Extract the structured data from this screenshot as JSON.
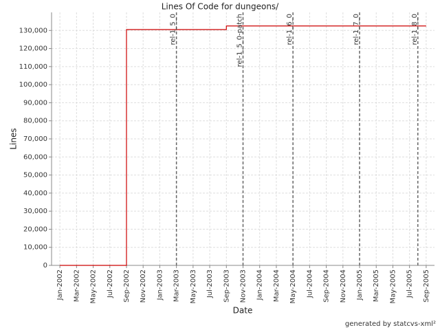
{
  "chart_data": {
    "type": "line",
    "title": "Lines Of Code for dungeons/",
    "x_label": "Date",
    "y_label": "Lines",
    "series": [
      {
        "name": "Lines",
        "color": "#cc0000",
        "step": "post",
        "x": [
          "2002-01",
          "2002-09",
          "2003-09",
          "2005-09"
        ],
        "values": [
          0,
          130500,
          132500,
          132500
        ]
      }
    ],
    "xlim": [
      "2001-12",
      "2005-10"
    ],
    "xticks": [
      {
        "value": "2002-01",
        "label": "Jan-2002"
      },
      {
        "value": "2002-03",
        "label": "Mar-2002"
      },
      {
        "value": "2002-05",
        "label": "May-2002"
      },
      {
        "value": "2002-07",
        "label": "Jul-2002"
      },
      {
        "value": "2002-09",
        "label": "Sep-2002"
      },
      {
        "value": "2002-11",
        "label": "Nov-2002"
      },
      {
        "value": "2003-01",
        "label": "Jan-2003"
      },
      {
        "value": "2003-03",
        "label": "Mar-2003"
      },
      {
        "value": "2003-05",
        "label": "May-2003"
      },
      {
        "value": "2003-07",
        "label": "Jul-2003"
      },
      {
        "value": "2003-09",
        "label": "Sep-2003"
      },
      {
        "value": "2003-11",
        "label": "Nov-2003"
      },
      {
        "value": "2004-01",
        "label": "Jan-2004"
      },
      {
        "value": "2004-03",
        "label": "Mar-2004"
      },
      {
        "value": "2004-05",
        "label": "May-2004"
      },
      {
        "value": "2004-07",
        "label": "Jul-2004"
      },
      {
        "value": "2004-09",
        "label": "Sep-2004"
      },
      {
        "value": "2004-11",
        "label": "Nov-2004"
      },
      {
        "value": "2005-01",
        "label": "Jan-2005"
      },
      {
        "value": "2005-03",
        "label": "Mar-2005"
      },
      {
        "value": "2005-05",
        "label": "May-2005"
      },
      {
        "value": "2005-07",
        "label": "Jul-2005"
      },
      {
        "value": "2005-09",
        "label": "Sep-2005"
      }
    ],
    "ylim": [
      0,
      140000
    ],
    "yticks": [
      0,
      {
        "value": 10000,
        "label": "10,000"
      },
      {
        "value": 20000,
        "label": "20,000"
      },
      {
        "value": 30000,
        "label": "30,000"
      },
      {
        "value": 40000,
        "label": "40,000"
      },
      {
        "value": 50000,
        "label": "50,000"
      },
      {
        "value": 60000,
        "label": "60,000"
      },
      {
        "value": 70000,
        "label": "70,000"
      },
      {
        "value": 80000,
        "label": "80,000"
      },
      {
        "value": 90000,
        "label": "90,000"
      },
      {
        "value": 100000,
        "label": "100,000"
      },
      {
        "value": 110000,
        "label": "110,000"
      },
      {
        "value": 120000,
        "label": "120,000"
      },
      {
        "value": 130000,
        "label": "130,000"
      }
    ],
    "grid": true,
    "markers": [
      {
        "x": "2003-03",
        "label": "rel-1_5_0"
      },
      {
        "x": "2003-11",
        "label": "rel-1_5_0-patch"
      },
      {
        "x": "2004-05",
        "label": "rel-1_6_0"
      },
      {
        "x": "2005-01",
        "label": "rel-1_7_0"
      },
      {
        "x": "2005-08",
        "label": "rel-1_8_0"
      }
    ],
    "footer": "generated by statcvs-xml²"
  }
}
